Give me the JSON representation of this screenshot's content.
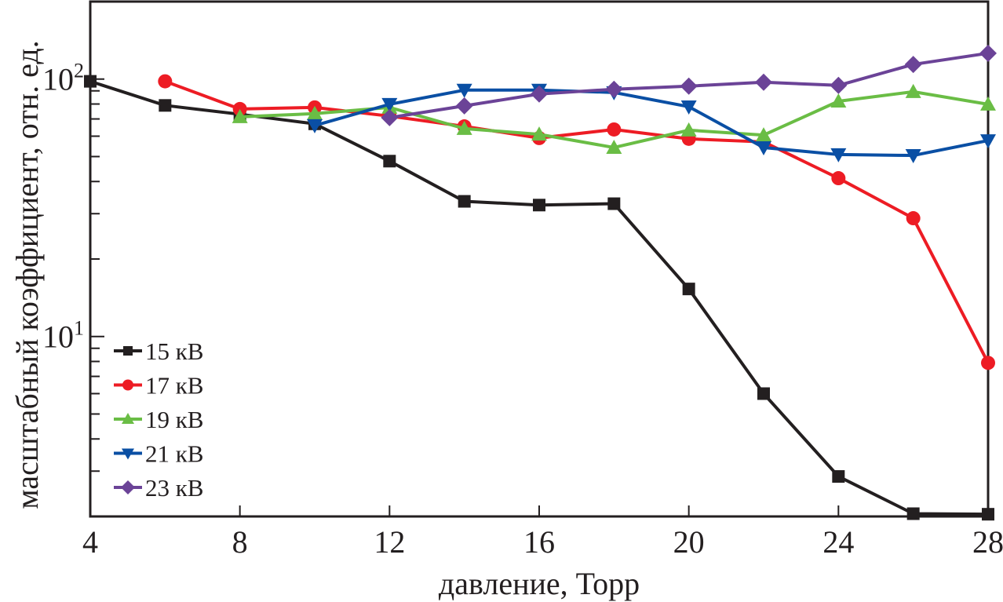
{
  "chart_data": {
    "type": "line",
    "title": "",
    "xlabel": "давление, Торр",
    "ylabel": "масштабный коэффициент, отн. ед.",
    "xlim": [
      4,
      28
    ],
    "ylim": [
      2,
      200
    ],
    "yscale": "log",
    "x_ticks": [
      4,
      8,
      12,
      16,
      20,
      24,
      28
    ],
    "x_tick_labels": [
      "4",
      "8",
      "12",
      "16",
      "20",
      "24",
      "28"
    ],
    "y_major_ticks": [
      {
        "value": 10,
        "base": "10",
        "exp": "1"
      },
      {
        "value": 100,
        "base": "10",
        "exp": "2"
      }
    ],
    "grid": false,
    "legend_position": "bottom-left",
    "series": [
      {
        "name": "15 кВ",
        "color": "#231f20",
        "marker": "square",
        "x": [
          4,
          6,
          8,
          10,
          12,
          14,
          16,
          18,
          20,
          22,
          24,
          26,
          28
        ],
        "values": [
          98,
          79,
          73,
          67,
          48,
          33.5,
          32.4,
          32.8,
          15.3,
          6.0,
          2.86,
          2.05,
          2.04
        ]
      },
      {
        "name": "17 кВ",
        "color": "#ed1c24",
        "marker": "circle",
        "x": [
          6,
          8,
          10,
          12,
          14,
          16,
          18,
          20,
          22,
          24,
          26,
          28
        ],
        "values": [
          98,
          76.5,
          77.6,
          71.8,
          65.5,
          59,
          63.7,
          58.6,
          57,
          41.2,
          28.8,
          7.9
        ]
      },
      {
        "name": "19 кВ",
        "color": "#6abd45",
        "marker": "triangle-up",
        "x": [
          8,
          10,
          12,
          14,
          16,
          18,
          20,
          22,
          24,
          26,
          28
        ],
        "values": [
          71.3,
          73.4,
          77.6,
          64.2,
          61,
          54.2,
          63.3,
          60.6,
          82,
          89.3,
          79.8
        ]
      },
      {
        "name": "21 кВ",
        "color": "#0a4fa4",
        "marker": "triangle-down",
        "x": [
          10,
          12,
          14,
          16,
          18,
          20,
          22,
          24,
          26,
          28
        ],
        "values": [
          66,
          79.8,
          90.6,
          90.6,
          88.7,
          78.1,
          54.2,
          50.9,
          50.5,
          57.7
        ]
      },
      {
        "name": "23 кВ",
        "color": "#6b4397",
        "marker": "diamond",
        "x": [
          12,
          14,
          16,
          18,
          20,
          22,
          24,
          26,
          28
        ],
        "values": [
          70.8,
          78.7,
          87.5,
          91.3,
          93.9,
          97.2,
          94.5,
          114,
          126
        ]
      }
    ]
  }
}
